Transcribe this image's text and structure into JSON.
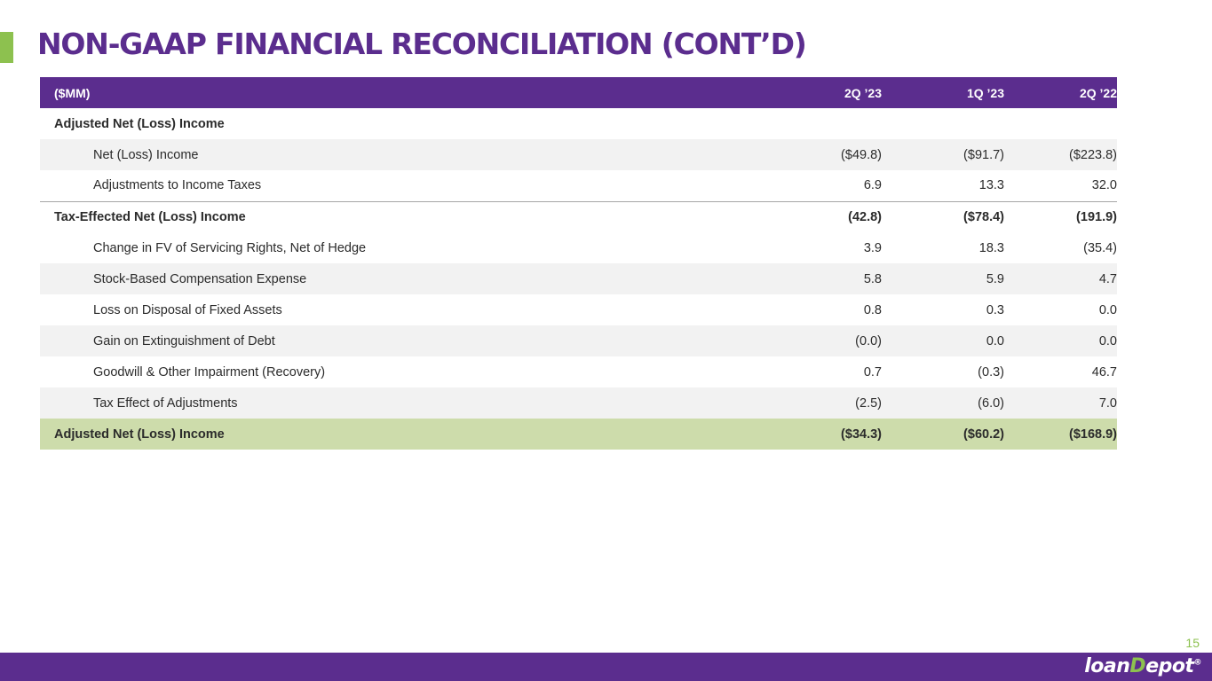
{
  "title": "NON-GAAP FINANCIAL RECONCILIATION (CONT’D)",
  "table": {
    "columns": [
      "($MM)",
      "2Q ’23",
      "1Q ’23",
      "2Q ’22"
    ],
    "rows": [
      {
        "label": "Adjusted Net (Loss) Income",
        "values": [
          "",
          "",
          ""
        ]
      },
      {
        "label": "Net (Loss) Income",
        "values": [
          "($49.8)",
          "($91.7)",
          "($223.8)"
        ]
      },
      {
        "label": "Adjustments to Income Taxes",
        "values": [
          "6.9",
          "13.3",
          "32.0"
        ]
      },
      {
        "label": "Tax-Effected Net (Loss) Income",
        "values": [
          "(42.8)",
          "($78.4)",
          "(191.9)"
        ]
      },
      {
        "label": "Change in FV of Servicing Rights, Net of Hedge",
        "values": [
          "3.9",
          "18.3",
          "(35.4)"
        ]
      },
      {
        "label": "Stock-Based Compensation Expense",
        "values": [
          "5.8",
          "5.9",
          "4.7"
        ]
      },
      {
        "label": "Loss on Disposal of Fixed Assets",
        "values": [
          "0.8",
          "0.3",
          "0.0"
        ]
      },
      {
        "label": "Gain on Extinguishment of Debt",
        "values": [
          "(0.0)",
          "0.0",
          "0.0"
        ]
      },
      {
        "label": "Goodwill & Other Impairment (Recovery)",
        "values": [
          "0.7",
          "(0.3)",
          "46.7"
        ]
      },
      {
        "label": "Tax Effect of Adjustments",
        "values": [
          "(2.5)",
          "(6.0)",
          "7.0"
        ]
      },
      {
        "label": "Adjusted Net (Loss) Income",
        "values": [
          "($34.3)",
          "($60.2)",
          "($168.9)"
        ]
      }
    ]
  },
  "page_number": "15",
  "footer": {
    "logo_text_left": "loan",
    "logo_mark": "D",
    "logo_text_right": "epot",
    "logo_symbol": "®"
  },
  "colors": {
    "brand_purple": "#5b2d8e",
    "brand_green": "#8dc14f",
    "total_row_green": "#cddcab",
    "row_shade": "#f2f2f2"
  }
}
